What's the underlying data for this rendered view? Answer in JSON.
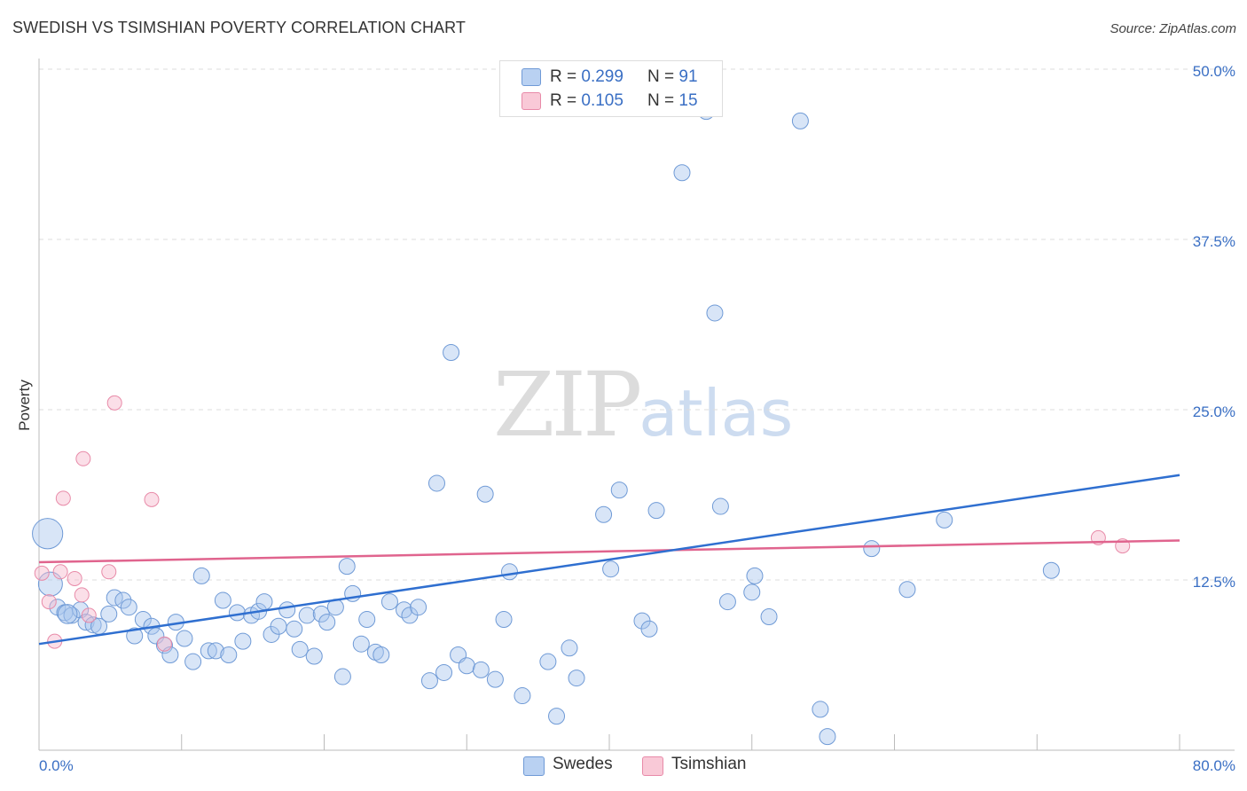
{
  "header": {
    "title": "SWEDISH VS TSIMSHIAN POVERTY CORRELATION CHART",
    "source": "Source: ZipAtlas.com"
  },
  "legend": {
    "swedes": {
      "r_label": "R = ",
      "r_value": "0.299",
      "n_label": "N = ",
      "n_value": "91"
    },
    "tsimshian": {
      "r_label": "R = ",
      "r_value": "0.105",
      "n_label": "N = ",
      "n_value": "15"
    }
  },
  "bottom_legend": {
    "swedes": "Swedes",
    "tsimshian": "Tsimshian"
  },
  "watermark": {
    "zip": "ZIP",
    "atlas": "atlas"
  },
  "colors": {
    "swedes_fill": "#a9c6ee",
    "swedes_stroke": "#6f9ad6",
    "swedes_line": "#2f6fd0",
    "tsimshian_fill": "#f6b8cb",
    "tsimshian_stroke": "#e88aa8",
    "tsimshian_line": "#e0648e",
    "grid": "#dddddd",
    "tick_text": "#3a6fc4"
  },
  "chart_data": {
    "type": "scatter",
    "title": "SWEDISH VS TSIMSHIAN POVERTY CORRELATION CHART",
    "xlabel": "",
    "ylabel": "Poverty",
    "xlim": [
      0,
      80
    ],
    "ylim": [
      0,
      50
    ],
    "x_tick_labels": [
      "0.0%",
      "80.0%"
    ],
    "y_ticks": [
      12.5,
      25.0,
      37.5,
      50.0
    ],
    "y_tick_labels": [
      "12.5%",
      "25.0%",
      "37.5%",
      "50.0%"
    ],
    "grid": true,
    "legend_position": "top-center",
    "series": [
      {
        "name": "Swedes",
        "r": 0.299,
        "n": 91,
        "trend": {
          "x": [
            0,
            80
          ],
          "y": [
            7.8,
            20.2
          ]
        },
        "points": [
          [
            0.6,
            15.9,
            1.9
          ],
          [
            0.8,
            12.2,
            1.5
          ],
          [
            1.3,
            10.5,
            1
          ],
          [
            1.8,
            10.1,
            1
          ],
          [
            2.3,
            9.9,
            1
          ],
          [
            2.9,
            10.3,
            1
          ],
          [
            3.3,
            9.4,
            1
          ],
          [
            3.8,
            9.2,
            1
          ],
          [
            4.2,
            9.1,
            1
          ],
          [
            4.9,
            10.0,
            1
          ],
          [
            5.3,
            11.2,
            1
          ],
          [
            5.9,
            11.0,
            1
          ],
          [
            6.3,
            10.5,
            1
          ],
          [
            6.7,
            8.4,
            1
          ],
          [
            7.3,
            9.6,
            1
          ],
          [
            7.9,
            9.1,
            1
          ],
          [
            8.2,
            8.4,
            1
          ],
          [
            8.8,
            7.7,
            1
          ],
          [
            9.2,
            7.0,
            1
          ],
          [
            9.6,
            9.4,
            1
          ],
          [
            10.2,
            8.2,
            1
          ],
          [
            10.8,
            6.5,
            1
          ],
          [
            11.4,
            12.8,
            1
          ],
          [
            11.9,
            7.3,
            1
          ],
          [
            12.4,
            7.3,
            1
          ],
          [
            12.9,
            11.0,
            1
          ],
          [
            13.3,
            7.0,
            1
          ],
          [
            13.9,
            10.1,
            1
          ],
          [
            14.3,
            8.0,
            1
          ],
          [
            14.9,
            9.9,
            1
          ],
          [
            15.4,
            10.2,
            1
          ],
          [
            15.8,
            10.9,
            1
          ],
          [
            16.3,
            8.5,
            1
          ],
          [
            16.8,
            9.1,
            1
          ],
          [
            17.4,
            10.3,
            1
          ],
          [
            17.9,
            8.9,
            1
          ],
          [
            18.3,
            7.4,
            1
          ],
          [
            18.8,
            9.9,
            1
          ],
          [
            19.3,
            6.9,
            1
          ],
          [
            19.8,
            10.0,
            1
          ],
          [
            20.2,
            9.4,
            1
          ],
          [
            20.8,
            10.5,
            1
          ],
          [
            21.3,
            5.4,
            1
          ],
          [
            21.6,
            13.5,
            1
          ],
          [
            22.0,
            11.5,
            1
          ],
          [
            22.6,
            7.8,
            1
          ],
          [
            23.0,
            9.6,
            1
          ],
          [
            23.6,
            7.2,
            1
          ],
          [
            24.0,
            7.0,
            1
          ],
          [
            24.6,
            10.9,
            1
          ],
          [
            25.6,
            10.3,
            1
          ],
          [
            26.0,
            9.9,
            1
          ],
          [
            26.6,
            10.5,
            1
          ],
          [
            27.4,
            5.1,
            1
          ],
          [
            27.9,
            19.6,
            1
          ],
          [
            28.4,
            5.7,
            1
          ],
          [
            28.9,
            29.2,
            1
          ],
          [
            29.4,
            7.0,
            1
          ],
          [
            30.0,
            6.2,
            1
          ],
          [
            31.0,
            5.9,
            1
          ],
          [
            31.3,
            18.8,
            1
          ],
          [
            32.0,
            5.2,
            1
          ],
          [
            32.6,
            9.6,
            1
          ],
          [
            33.0,
            13.1,
            1
          ],
          [
            33.9,
            4.0,
            1
          ],
          [
            35.7,
            6.5,
            1
          ],
          [
            36.3,
            2.5,
            1
          ],
          [
            37.2,
            7.5,
            1
          ],
          [
            37.7,
            5.3,
            1
          ],
          [
            39.6,
            17.3,
            1
          ],
          [
            40.1,
            13.3,
            1
          ],
          [
            40.7,
            19.1,
            1
          ],
          [
            42.3,
            9.5,
            1
          ],
          [
            42.8,
            8.9,
            1
          ],
          [
            43.3,
            17.6,
            1
          ],
          [
            45.1,
            42.4,
            1
          ],
          [
            46.8,
            46.9,
            1
          ],
          [
            47.4,
            32.1,
            1
          ],
          [
            47.8,
            17.9,
            1
          ],
          [
            48.3,
            10.9,
            1
          ],
          [
            50.0,
            11.6,
            1
          ],
          [
            50.2,
            12.8,
            1
          ],
          [
            51.2,
            9.8,
            1
          ],
          [
            53.4,
            46.2,
            1
          ],
          [
            54.8,
            3.0,
            1
          ],
          [
            55.3,
            1.0,
            1
          ],
          [
            58.4,
            14.8,
            1
          ],
          [
            60.9,
            11.8,
            1
          ],
          [
            63.5,
            16.9,
            1
          ],
          [
            71.0,
            13.2,
            1
          ],
          [
            2.0,
            10.0,
            1.2
          ]
        ]
      },
      {
        "name": "Tsimshian",
        "r": 0.105,
        "n": 15,
        "trend": {
          "x": [
            0,
            80
          ],
          "y": [
            13.8,
            15.4
          ]
        },
        "points": [
          [
            0.2,
            13.0
          ],
          [
            0.7,
            10.9
          ],
          [
            1.1,
            8.0
          ],
          [
            1.5,
            13.1
          ],
          [
            1.7,
            18.5
          ],
          [
            2.5,
            12.6
          ],
          [
            3.1,
            21.4
          ],
          [
            3.0,
            11.4
          ],
          [
            3.5,
            9.9
          ],
          [
            4.9,
            13.1
          ],
          [
            5.3,
            25.5
          ],
          [
            7.9,
            18.4
          ],
          [
            8.8,
            7.8
          ],
          [
            74.3,
            15.6
          ],
          [
            76.0,
            15.0
          ]
        ]
      }
    ]
  }
}
